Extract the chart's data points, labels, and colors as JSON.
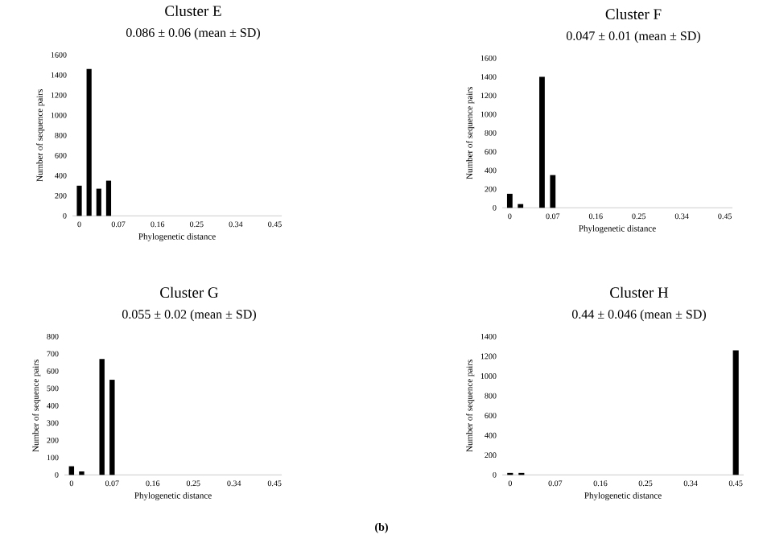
{
  "chart_data": [
    {
      "type": "bar",
      "title": "Cluster E",
      "subtitle": "0.086 ± 0.06 (mean ± SD)",
      "xlabel": "Phylogenetic distance",
      "ylabel": "Number of sequence pairs",
      "categories": [
        "0",
        null,
        null,
        null,
        "0.07",
        null,
        null,
        null,
        "0.16",
        null,
        null,
        null,
        "0.25",
        null,
        null,
        null,
        "0.34",
        null,
        null,
        null,
        "0.45"
      ],
      "values": [
        300,
        1460,
        270,
        350,
        0,
        0,
        0,
        0,
        0,
        0,
        0,
        0,
        0,
        0,
        0,
        0,
        0,
        0,
        0,
        0,
        0
      ],
      "color": "#000000",
      "ylim": [
        0,
        1600
      ],
      "yticks": [
        0,
        200,
        400,
        600,
        800,
        1000,
        1200,
        1400,
        1600
      ]
    },
    {
      "type": "bar",
      "title": "Cluster F",
      "subtitle": "0.047 ± 0.01 (mean ± SD)",
      "xlabel": "Phylogenetic distance",
      "ylabel": "Number of sequence pairs",
      "categories": [
        "0",
        null,
        null,
        null,
        "0.07",
        null,
        null,
        null,
        "0.16",
        null,
        null,
        null,
        "0.25",
        null,
        null,
        null,
        "0.34",
        null,
        null,
        null,
        "0.45"
      ],
      "values": [
        150,
        40,
        0,
        1400,
        350,
        0,
        0,
        0,
        0,
        0,
        0,
        0,
        0,
        0,
        0,
        0,
        0,
        0,
        0,
        0,
        0
      ],
      "color": "#000000",
      "ylim": [
        0,
        1600
      ],
      "yticks": [
        0,
        200,
        400,
        600,
        800,
        1000,
        1200,
        1400,
        1600
      ]
    },
    {
      "type": "bar",
      "title": "Cluster G",
      "subtitle": "0.055 ± 0.02 (mean ± SD)",
      "xlabel": "Phylogenetic distance",
      "ylabel": "Number of sequence pairs",
      "categories": [
        "0",
        null,
        null,
        null,
        "0.07",
        null,
        null,
        null,
        "0.16",
        null,
        null,
        null,
        "0.25",
        null,
        null,
        null,
        "0.34",
        null,
        null,
        null,
        "0.45"
      ],
      "values": [
        50,
        20,
        0,
        670,
        550,
        0,
        0,
        0,
        0,
        0,
        0,
        0,
        0,
        0,
        0,
        0,
        0,
        0,
        0,
        0,
        0
      ],
      "color": "#000000",
      "ylim": [
        0,
        800
      ],
      "yticks": [
        0,
        100,
        200,
        300,
        400,
        500,
        600,
        700,
        800
      ]
    },
    {
      "type": "bar",
      "title": "Cluster H",
      "subtitle": "0.44 ± 0.046 (mean ± SD)",
      "xlabel": "Phylogenetic distance",
      "ylabel": "Number of sequence pairs",
      "categories": [
        "0",
        null,
        null,
        null,
        "0.07",
        null,
        null,
        null,
        "0.16",
        null,
        null,
        null,
        "0.25",
        null,
        null,
        null,
        "0.34",
        null,
        null,
        null,
        "0.45"
      ],
      "values": [
        20,
        20,
        0,
        0,
        0,
        0,
        0,
        0,
        0,
        0,
        0,
        0,
        0,
        0,
        0,
        0,
        0,
        0,
        0,
        0,
        1260
      ],
      "color": "#000000",
      "ylim": [
        0,
        1400
      ],
      "yticks": [
        0,
        200,
        400,
        600,
        800,
        1000,
        1200,
        1400
      ],
      "annotations": [
        "(b)"
      ]
    }
  ]
}
